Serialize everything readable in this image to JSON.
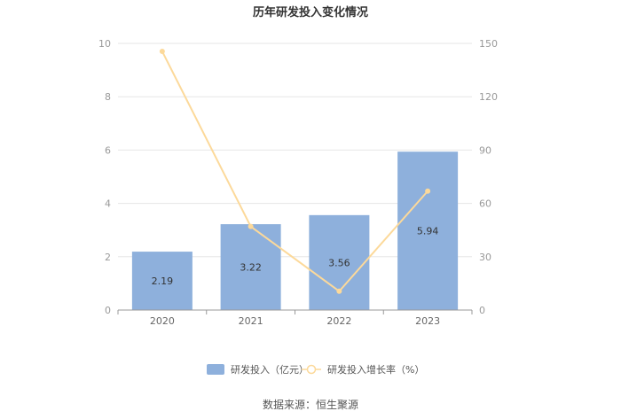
{
  "chart_data": {
    "type": "bar+line",
    "title": "历年研发投入变化情况",
    "categories": [
      "2020",
      "2021",
      "2022",
      "2023"
    ],
    "series": [
      {
        "name": "研发投入（亿元）",
        "type": "bar",
        "axis": "left",
        "values": [
          2.19,
          3.22,
          3.56,
          5.94
        ],
        "labels": [
          "2.19",
          "3.22",
          "3.56",
          "5.94"
        ],
        "color": "#8eb0dc"
      },
      {
        "name": "研发投入增长率（%）",
        "type": "line",
        "axis": "right",
        "values": [
          145.5,
          47.0,
          10.6,
          66.9
        ],
        "color": "#fcd99a"
      }
    ],
    "y_left": {
      "min": 0,
      "max": 10,
      "ticks": [
        "0",
        "2",
        "4",
        "6",
        "8",
        "10"
      ]
    },
    "y_right": {
      "min": 0,
      "max": 150,
      "ticks": [
        "0",
        "30",
        "60",
        "90",
        "120",
        "150"
      ]
    },
    "grid": true,
    "legend_position": "bottom"
  },
  "source_text": "数据来源：恒生聚源"
}
